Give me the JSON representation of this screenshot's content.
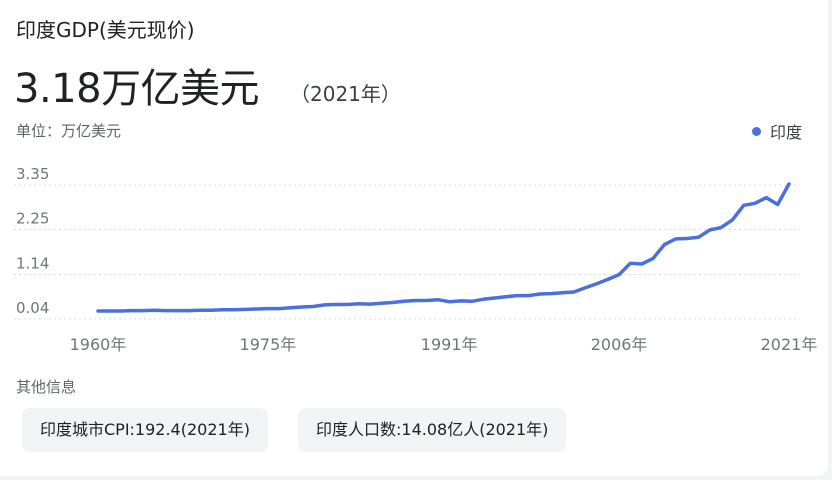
{
  "header": {
    "title": "印度GDP(美元现价)",
    "value": "3.18万亿美元",
    "year_note": "（2021年）",
    "unit_label": "单位：万亿美元"
  },
  "other_info": {
    "label": "其他信息",
    "chips": [
      "印度城市CPI:192.4(2021年)",
      "印度人口数:14.08亿人(2021年)"
    ]
  },
  "colors": {
    "series": "#4c6fe0",
    "grid": "#dadce0"
  },
  "chart_data": {
    "type": "line",
    "title": "印度GDP(美元现价)",
    "ylabel": "万亿美元",
    "xlabel": "",
    "series": [
      {
        "name": "印度",
        "x": [
          1960,
          1961,
          1962,
          1963,
          1964,
          1965,
          1966,
          1967,
          1968,
          1969,
          1970,
          1971,
          1972,
          1973,
          1974,
          1975,
          1976,
          1977,
          1978,
          1979,
          1980,
          1981,
          1982,
          1983,
          1984,
          1985,
          1986,
          1987,
          1988,
          1989,
          1990,
          1991,
          1992,
          1993,
          1994,
          1995,
          1996,
          1997,
          1998,
          1999,
          2000,
          2001,
          2002,
          2003,
          2004,
          2005,
          2006,
          2007,
          2008,
          2009,
          2010,
          2011,
          2012,
          2013,
          2014,
          2015,
          2016,
          2017,
          2018,
          2019,
          2020,
          2021
        ],
        "values": [
          0.04,
          0.04,
          0.04,
          0.05,
          0.05,
          0.06,
          0.05,
          0.05,
          0.05,
          0.06,
          0.06,
          0.07,
          0.07,
          0.08,
          0.09,
          0.1,
          0.1,
          0.12,
          0.14,
          0.15,
          0.19,
          0.2,
          0.2,
          0.22,
          0.21,
          0.23,
          0.25,
          0.28,
          0.3,
          0.3,
          0.32,
          0.27,
          0.29,
          0.28,
          0.33,
          0.36,
          0.39,
          0.42,
          0.42,
          0.46,
          0.47,
          0.49,
          0.51,
          0.61,
          0.71,
          0.82,
          0.94,
          1.22,
          1.2,
          1.34,
          1.68,
          1.82,
          1.83,
          1.86,
          2.04,
          2.1,
          2.29,
          2.65,
          2.7,
          2.84,
          2.67,
          3.18
        ]
      }
    ],
    "yticks": [
      "3.35",
      "2.25",
      "1.14",
      "0.04"
    ],
    "ytick_values": [
      3.35,
      2.25,
      1.14,
      0.04
    ],
    "xticks": [
      "1960年",
      "1975年",
      "1991年",
      "2006年",
      "2021年"
    ],
    "xtick_values": [
      1960,
      1975,
      1991,
      2006,
      2021
    ],
    "ylim": [
      0.04,
      3.35
    ],
    "xlim": [
      1960,
      2021
    ],
    "grid": true,
    "legend_position": "top-right"
  }
}
